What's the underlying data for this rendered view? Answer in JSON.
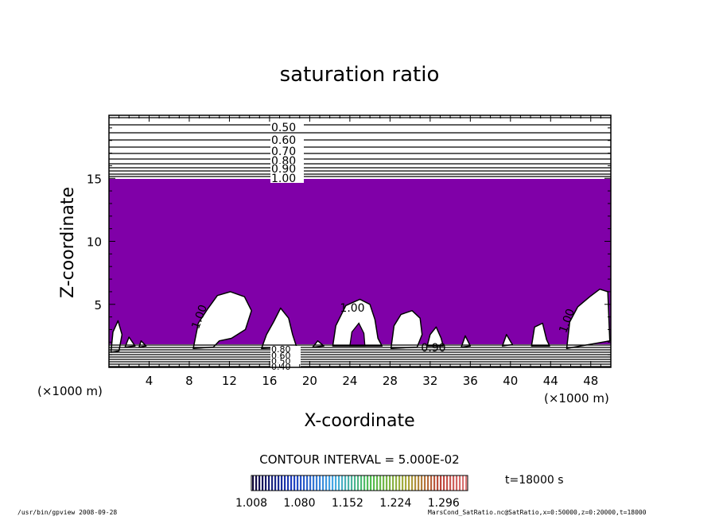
{
  "chart_data": {
    "type": "contour",
    "title": "saturation ratio",
    "xlabel": "X-coordinate",
    "ylabel": "Z-coordinate",
    "x_unit_label": "(×1000 m)",
    "x_unit_label_right": "(×1000 m)",
    "xlim": [
      0,
      50
    ],
    "ylim": [
      0,
      20
    ],
    "x_ticks": [
      4,
      8,
      12,
      16,
      20,
      24,
      28,
      32,
      36,
      40,
      44,
      48
    ],
    "y_ticks": [
      5,
      10,
      15
    ],
    "fill_color": "#8000a8",
    "fill_threshold": 1.008,
    "upper_contour_labels": [
      "0.50",
      "0.60",
      "0.70",
      "0.80",
      "0.90",
      "1.00"
    ],
    "lower_contour_labels": [
      "0.80",
      "0.60",
      "0.50",
      "0.40"
    ],
    "inner_labels": [
      "1.00",
      "1.00",
      "1.00",
      "0.90"
    ],
    "contour_interval_text": "CONTOUR INTERVAL = 5.000E-02",
    "colorbar": {
      "min": 1.008,
      "max": 1.332,
      "tick_labels": [
        "1.008",
        "1.080",
        "1.152",
        "1.224",
        "1.296"
      ]
    },
    "time_label": "t=18000 s",
    "footer_left": "/usr/bin/gpview   2008-09-28",
    "footer_right": "MarsCond_SatRatio.nc@SatRatio,x=0:50000,z=0:20000,t=18000"
  }
}
